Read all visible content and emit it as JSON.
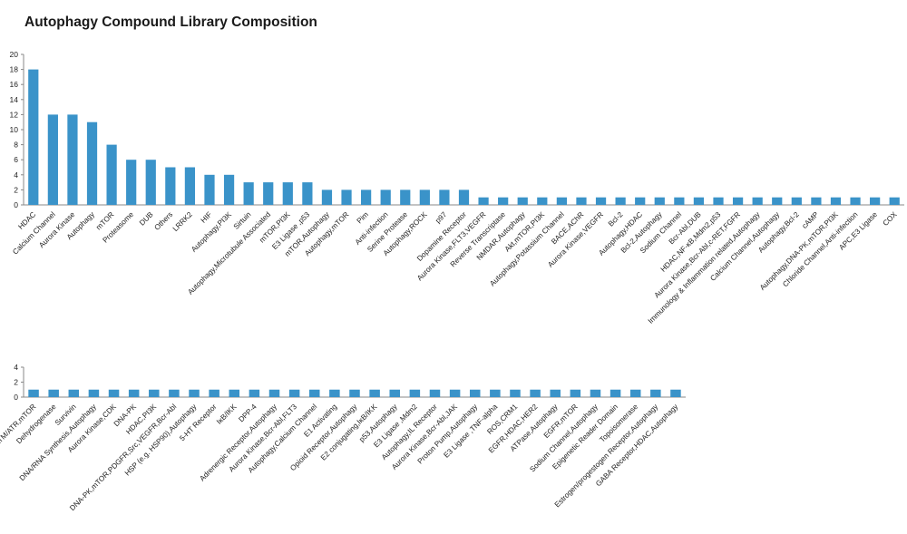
{
  "page": {
    "title": "Autophagy Compound Library Composition"
  },
  "chart_data": [
    {
      "type": "bar",
      "title": "Autophagy Compound Library Composition",
      "ylim": [
        0,
        20
      ],
      "yticks": [
        0,
        2,
        4,
        6,
        8,
        10,
        12,
        14,
        16,
        18,
        20
      ],
      "bar_color": "#3a93c9",
      "grid": false,
      "categories": [
        "HDAC",
        "Calcium Channel",
        "Aurora Kinase",
        "Autophagy",
        "mTOR",
        "Proteasome",
        "DUB",
        "Others",
        "LRRK2",
        "HIF",
        "Autophagy,PI3K",
        "Sirtuin",
        "Autophagy,Microtubule Associated",
        "mTOR,PI3K",
        "E3 Ligase ,p53",
        "mTOR,Autophagy",
        "Autophagy,mTOR",
        "Pim",
        "Anti-infection",
        "Serine Protease",
        "Autophagy,ROCK",
        "p97",
        "Dopamine Receptor",
        "Aurora Kinase,FLT3,VEGFR",
        "Reverse Transcriptase",
        "NMDAR,Autophagy",
        "Akt,mTOR,PI3K",
        "Autophagy,Potassium Channel",
        "BACE,AChR",
        "Aurora Kinase,VEGFR",
        "Bcl-2",
        "Autophagy,HDAC",
        "Bcl-2,Autophagy",
        "Sodium Channel",
        "Bcr-Abl,DUB",
        "HDAC,NF-κB,Mdm2,p53",
        "Aurora Kinase,Bcr-Abl,c-RET,FGFR",
        "Immunology & Inflammation related,Autophagy",
        "Calcium Channel,Autophagy",
        "Autophagy,Bcl-2",
        "cAMP",
        "Autophagy,DNA-PK,mTOR,PI3K",
        "Chloride Channel,Anti-infection",
        "APC,E3 Ligase",
        "COX"
      ],
      "values": [
        18,
        12,
        12,
        11,
        8,
        6,
        6,
        5,
        5,
        4,
        4,
        3,
        3,
        3,
        3,
        2,
        2,
        2,
        2,
        2,
        2,
        2,
        2,
        1,
        1,
        1,
        1,
        1,
        1,
        1,
        1,
        1,
        1,
        1,
        1,
        1,
        1,
        1,
        1,
        1,
        1,
        1,
        1,
        1,
        1
      ]
    },
    {
      "type": "bar",
      "ylim": [
        0,
        4
      ],
      "yticks": [
        0,
        2,
        4
      ],
      "bar_color": "#3a93c9",
      "grid": false,
      "categories": [
        "ATM/ATR,mTOR",
        "Dehydrogenase",
        "Survivin",
        "DNA/RNA Synthesis,Autophagy",
        "Aurora Kinase,CDK",
        "DNA-PK",
        "HDAC,PI3K",
        "DNA-PK,mTOR,PDGFR,Src,VEGFR,Bcr-Abl",
        "HSP (e.g. HSP90),Autophagy",
        "5-HT Receptor",
        "IκB/IKK",
        "DPP-4",
        "Adrenergic Receptor,Autophagy",
        "Aurora Kinase,Bcr-Abl,FLT3",
        "Autophagy,Calcium Channel",
        "E1 Activating",
        "Opioid Receptor,Autophagy",
        "E2 conjugating,IκB/IKK",
        "p53,Autophagy",
        "E3 Ligase ,Mdm2",
        "Autophagy,IL Receptor",
        "Aurora Kinase,Bcr-Abl,JAK",
        "Proton Pump,Autophagy",
        "E3 Ligase ,TNF-alpha",
        "ROS,CRM1",
        "EGFR,HDAC,HER2",
        "ATPase,Autophagy",
        "EGFR,mTOR",
        "Sodium Channel,Autophagy",
        "Epigenetic Reader Domain",
        "Topoisomerase",
        "Estrogen/progestogen Receptor,Autophagy",
        "GABA Receptor,HDAC,Autophagy"
      ],
      "values": [
        1,
        1,
        1,
        1,
        1,
        1,
        1,
        1,
        1,
        1,
        1,
        1,
        1,
        1,
        1,
        1,
        1,
        1,
        1,
        1,
        1,
        1,
        1,
        1,
        1,
        1,
        1,
        1,
        1,
        1,
        1,
        1,
        1
      ]
    }
  ]
}
